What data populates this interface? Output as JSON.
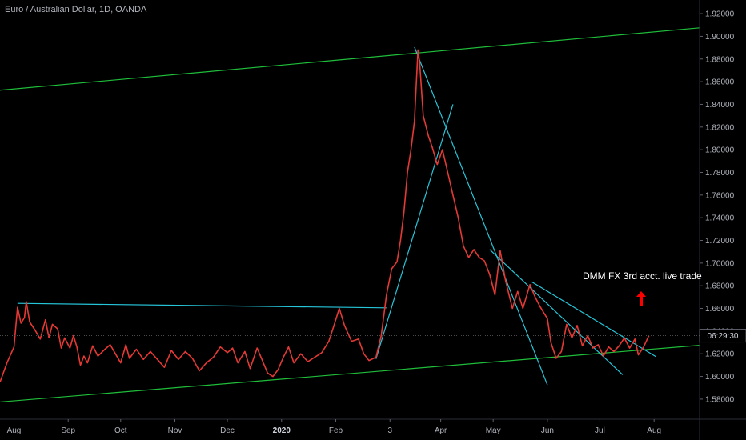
{
  "title": "Euro / Australian Dollar, 1D, OANDA",
  "annotation": "DMM FX 3rd acct. live trade",
  "price_label": "06:29:30",
  "colors": {
    "background": "#000000",
    "price": "#e53935",
    "channel": "#1fbe3a",
    "trendline": "#26c6da",
    "arrow": "#ff0000"
  },
  "chart_data": {
    "type": "line",
    "y_ticks": [
      "1.92000",
      "1.90000",
      "1.88000",
      "1.86000",
      "1.84000",
      "1.82000",
      "1.80000",
      "1.78000",
      "1.76000",
      "1.74000",
      "1.72000",
      "1.70000",
      "1.68000",
      "1.66000",
      "1.64000",
      "1.62000",
      "1.60000",
      "1.58000"
    ],
    "ylim": [
      1.575,
      1.925
    ],
    "x_ticks": [
      {
        "label": "Aug",
        "date": "2019-08-01"
      },
      {
        "label": "Sep",
        "date": "2019-09-01"
      },
      {
        "label": "Oct",
        "date": "2019-10-01"
      },
      {
        "label": "Nov",
        "date": "2019-11-01"
      },
      {
        "label": "Dec",
        "date": "2019-12-01"
      },
      {
        "label": "2020",
        "date": "2020-01-01",
        "bold": true
      },
      {
        "label": "Feb",
        "date": "2020-02-01"
      },
      {
        "label": "3",
        "date": "2020-03-03"
      },
      {
        "label": "Apr",
        "date": "2020-04-01"
      },
      {
        "label": "May",
        "date": "2020-05-01"
      },
      {
        "label": "Jun",
        "date": "2020-06-01"
      },
      {
        "label": "Jul",
        "date": "2020-07-01"
      },
      {
        "label": "Aug",
        "date": "2020-08-01"
      }
    ],
    "xlim": [
      "2019-07-24",
      "2020-08-27"
    ],
    "series": [
      {
        "values": [
          [
            "2019-07-24",
            1.595
          ],
          [
            "2019-07-28",
            1.612
          ],
          [
            "2019-08-01",
            1.626
          ],
          [
            "2019-08-03",
            1.661
          ],
          [
            "2019-08-05",
            1.647
          ],
          [
            "2019-08-07",
            1.652
          ],
          [
            "2019-08-08",
            1.666
          ],
          [
            "2019-08-10",
            1.648
          ],
          [
            "2019-08-13",
            1.641
          ],
          [
            "2019-08-16",
            1.633
          ],
          [
            "2019-08-19",
            1.65
          ],
          [
            "2019-08-21",
            1.634
          ],
          [
            "2019-08-23",
            1.646
          ],
          [
            "2019-08-26",
            1.642
          ],
          [
            "2019-08-28",
            1.625
          ],
          [
            "2019-08-30",
            1.634
          ],
          [
            "2019-09-02",
            1.625
          ],
          [
            "2019-09-04",
            1.636
          ],
          [
            "2019-09-06",
            1.626
          ],
          [
            "2019-09-08",
            1.61
          ],
          [
            "2019-09-10",
            1.618
          ],
          [
            "2019-09-12",
            1.612
          ],
          [
            "2019-09-15",
            1.627
          ],
          [
            "2019-09-18",
            1.618
          ],
          [
            "2019-09-22",
            1.624
          ],
          [
            "2019-09-25",
            1.628
          ],
          [
            "2019-09-28",
            1.62
          ],
          [
            "2019-10-01",
            1.612
          ],
          [
            "2019-10-04",
            1.628
          ],
          [
            "2019-10-06",
            1.616
          ],
          [
            "2019-10-10",
            1.624
          ],
          [
            "2019-10-14",
            1.615
          ],
          [
            "2019-10-18",
            1.622
          ],
          [
            "2019-10-22",
            1.615
          ],
          [
            "2019-10-26",
            1.608
          ],
          [
            "2019-10-30",
            1.623
          ],
          [
            "2019-11-03",
            1.615
          ],
          [
            "2019-11-07",
            1.622
          ],
          [
            "2019-11-11",
            1.616
          ],
          [
            "2019-11-15",
            1.605
          ],
          [
            "2019-11-19",
            1.612
          ],
          [
            "2019-11-23",
            1.617
          ],
          [
            "2019-11-27",
            1.626
          ],
          [
            "2019-12-01",
            1.621
          ],
          [
            "2019-12-04",
            1.625
          ],
          [
            "2019-12-07",
            1.612
          ],
          [
            "2019-12-11",
            1.622
          ],
          [
            "2019-12-14",
            1.607
          ],
          [
            "2019-12-18",
            1.625
          ],
          [
            "2019-12-21",
            1.614
          ],
          [
            "2019-12-24",
            1.603
          ],
          [
            "2019-12-27",
            1.6
          ],
          [
            "2019-12-30",
            1.606
          ],
          [
            "2020-01-02",
            1.617
          ],
          [
            "2020-01-05",
            1.626
          ],
          [
            "2020-01-08",
            1.612
          ],
          [
            "2020-01-12",
            1.62
          ],
          [
            "2020-01-16",
            1.613
          ],
          [
            "2020-01-20",
            1.617
          ],
          [
            "2020-01-24",
            1.621
          ],
          [
            "2020-01-28",
            1.631
          ],
          [
            "2020-01-31",
            1.645
          ],
          [
            "2020-02-03",
            1.66
          ],
          [
            "2020-02-06",
            1.645
          ],
          [
            "2020-02-10",
            1.631
          ],
          [
            "2020-02-14",
            1.633
          ],
          [
            "2020-02-17",
            1.62
          ],
          [
            "2020-02-20",
            1.614
          ],
          [
            "2020-02-24",
            1.617
          ],
          [
            "2020-02-27",
            1.636
          ],
          [
            "2020-03-01",
            1.672
          ],
          [
            "2020-03-04",
            1.695
          ],
          [
            "2020-03-07",
            1.701
          ],
          [
            "2020-03-09",
            1.72
          ],
          [
            "2020-03-11",
            1.745
          ],
          [
            "2020-03-13",
            1.78
          ],
          [
            "2020-03-15",
            1.8
          ],
          [
            "2020-03-17",
            1.825
          ],
          [
            "2020-03-19",
            1.888
          ],
          [
            "2020-03-20",
            1.876
          ],
          [
            "2020-03-22",
            1.83
          ],
          [
            "2020-03-25",
            1.812
          ],
          [
            "2020-03-27",
            1.803
          ],
          [
            "2020-03-30",
            1.787
          ],
          [
            "2020-04-02",
            1.8
          ],
          [
            "2020-04-05",
            1.78
          ],
          [
            "2020-04-08",
            1.76
          ],
          [
            "2020-04-11",
            1.74
          ],
          [
            "2020-04-14",
            1.715
          ],
          [
            "2020-04-17",
            1.705
          ],
          [
            "2020-04-20",
            1.712
          ],
          [
            "2020-04-23",
            1.705
          ],
          [
            "2020-04-26",
            1.702
          ],
          [
            "2020-04-29",
            1.69
          ],
          [
            "2020-05-02",
            1.672
          ],
          [
            "2020-05-05",
            1.711
          ],
          [
            "2020-05-08",
            1.685
          ],
          [
            "2020-05-12",
            1.66
          ],
          [
            "2020-05-15",
            1.675
          ],
          [
            "2020-05-18",
            1.66
          ],
          [
            "2020-05-22",
            1.681
          ],
          [
            "2020-05-25",
            1.67
          ],
          [
            "2020-05-28",
            1.661
          ],
          [
            "2020-06-01",
            1.651
          ],
          [
            "2020-06-03",
            1.63
          ],
          [
            "2020-06-06",
            1.616
          ],
          [
            "2020-06-09",
            1.622
          ],
          [
            "2020-06-12",
            1.646
          ],
          [
            "2020-06-15",
            1.634
          ],
          [
            "2020-06-18",
            1.645
          ],
          [
            "2020-06-21",
            1.627
          ],
          [
            "2020-06-24",
            1.636
          ],
          [
            "2020-06-27",
            1.625
          ],
          [
            "2020-06-30",
            1.628
          ],
          [
            "2020-07-03",
            1.618
          ],
          [
            "2020-07-06",
            1.626
          ],
          [
            "2020-07-09",
            1.622
          ],
          [
            "2020-07-12",
            1.627
          ],
          [
            "2020-07-15",
            1.634
          ],
          [
            "2020-07-18",
            1.625
          ],
          [
            "2020-07-21",
            1.633
          ],
          [
            "2020-07-23",
            1.619
          ],
          [
            "2020-07-26",
            1.626
          ],
          [
            "2020-07-29",
            1.636
          ]
        ]
      }
    ],
    "lines": [
      {
        "type": "channel",
        "from": [
          "2019-07-24",
          1.8525
        ],
        "to": [
          "2020-08-27",
          1.9075
        ]
      },
      {
        "type": "channel",
        "from": [
          "2019-07-24",
          1.5775
        ],
        "to": [
          "2020-08-27",
          1.6275
        ]
      },
      {
        "type": "trendline",
        "from": [
          "2019-08-03",
          1.6645
        ],
        "to": [
          "2020-03-01",
          1.6605
        ]
      },
      {
        "type": "trendline",
        "from": [
          "2020-02-24",
          1.6155
        ],
        "to": [
          "2020-04-08",
          1.84
        ]
      },
      {
        "type": "trendline",
        "from": [
          "2020-03-17",
          1.8905
        ],
        "to": [
          "2020-06-01",
          1.5925
        ]
      },
      {
        "type": "trendline",
        "from": [
          "2020-04-29",
          1.712
        ],
        "to": [
          "2020-07-14",
          1.6015
        ]
      },
      {
        "type": "trendline",
        "from": [
          "2020-05-23",
          1.6835
        ],
        "to": [
          "2020-08-02",
          1.6175
        ]
      }
    ]
  }
}
